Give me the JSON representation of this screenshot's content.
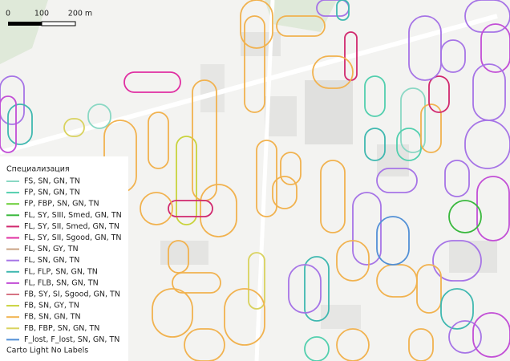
{
  "scale_bar": {
    "labels": [
      "0",
      "100",
      "200 m"
    ]
  },
  "legend": {
    "title": "Специализация",
    "items": [
      {
        "label": "FS, SN, GN, TN",
        "color": "#8ad8c4"
      },
      {
        "label": "FP, SN, GN, TN",
        "color": "#52cfae"
      },
      {
        "label": "FP, FBP, SN, GN, TN",
        "color": "#6ccf3a"
      },
      {
        "label": "FL, SY, SIII, Smed, GN, TN",
        "color": "#38b83c"
      },
      {
        "label": "FL, SY, SII, Smed, GN, TN",
        "color": "#d1286e"
      },
      {
        "label": "FL, SY, SII, Sgood, GN, TN",
        "color": "#e02fa2"
      },
      {
        "label": "FL, SN, GY, TN",
        "color": "#c9a283"
      },
      {
        "label": "FL, SN, GN, TN",
        "color": "#a674e6"
      },
      {
        "label": "FL, FLP, SN, GN, TN",
        "color": "#3fb8b0"
      },
      {
        "label": "FL, FLB, SN, GN, TN",
        "color": "#c24ed6"
      },
      {
        "label": "FB, SY, SI, Sgood, GN, TN",
        "color": "#d67484"
      },
      {
        "label": "FB, SN, GY, TN",
        "color": "#c9d33c"
      },
      {
        "label": "FB, SN, GN, TN",
        "color": "#f1b24f"
      },
      {
        "label": "FB, FBP, SN, GN, TN",
        "color": "#d9d25e"
      },
      {
        "label": "F_lost, F_lost, SN, GN, TN",
        "color": "#5290d6"
      }
    ],
    "basemap": "Carto Light No Labels"
  }
}
